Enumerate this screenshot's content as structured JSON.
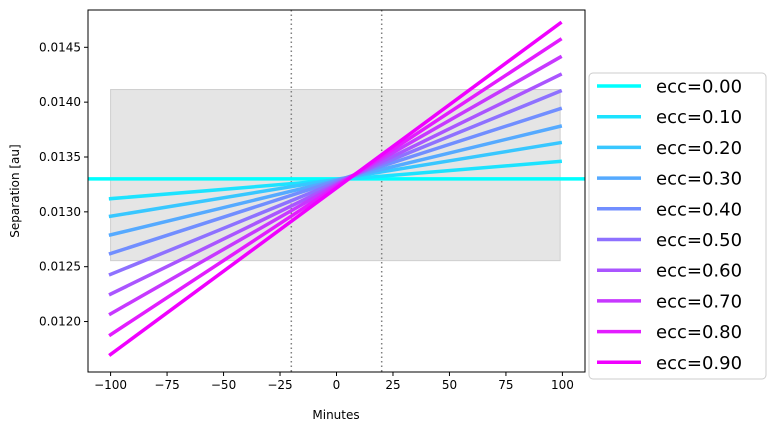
{
  "chart_data": {
    "type": "line",
    "title": "",
    "xlabel": "Minutes",
    "ylabel": "Separation [au]",
    "xlim": [
      -110,
      110
    ],
    "ylim": [
      0.01154,
      0.01484
    ],
    "xticks": [
      -100,
      -75,
      -50,
      -25,
      0,
      25,
      50,
      75,
      100
    ],
    "xtick_labels": [
      "−100",
      "−75",
      "−50",
      "−25",
      "0",
      "25",
      "50",
      "75",
      "100"
    ],
    "yticks": [
      0.012,
      0.0125,
      0.013,
      0.0135,
      0.014,
      0.0145
    ],
    "ytick_labels": [
      "0.0120",
      "0.0125",
      "0.0130",
      "0.0135",
      "0.0140",
      "0.0145"
    ],
    "grid": false,
    "legend_position": "outside-right",
    "shaded_region": {
      "x": [
        -100,
        99
      ],
      "y": [
        0.012555,
        0.014115
      ],
      "color": "#e5e5e5"
    },
    "vlines": {
      "x": [
        -20,
        20
      ],
      "color": "#7f7f7f",
      "style": "dotted"
    },
    "series": [
      {
        "name": "ecc=0.00",
        "color": "#00ffff",
        "x": [
          -110,
          110
        ],
        "y": [
          0.0133,
          0.0133
        ]
      },
      {
        "name": "ecc=0.10",
        "color": "#1ce3ff",
        "x": [
          -100,
          99
        ],
        "y": [
          0.01312,
          0.01346
        ]
      },
      {
        "name": "ecc=0.20",
        "color": "#38c7ff",
        "x": [
          -100,
          99
        ],
        "y": [
          0.01296,
          0.01363
        ]
      },
      {
        "name": "ecc=0.30",
        "color": "#55aaff",
        "x": [
          -100,
          99
        ],
        "y": [
          0.01279,
          0.01378
        ]
      },
      {
        "name": "ecc=0.40",
        "color": "#718eff",
        "x": [
          -100,
          99
        ],
        "y": [
          0.01262,
          0.01394
        ]
      },
      {
        "name": "ecc=0.50",
        "color": "#8e71ff",
        "x": [
          -100,
          99
        ],
        "y": [
          0.01243,
          0.0141
        ]
      },
      {
        "name": "ecc=0.60",
        "color": "#aa55ff",
        "x": [
          -100,
          99
        ],
        "y": [
          0.01225,
          0.01425
        ]
      },
      {
        "name": "ecc=0.70",
        "color": "#c738ff",
        "x": [
          -100,
          99
        ],
        "y": [
          0.01207,
          0.01441
        ]
      },
      {
        "name": "ecc=0.80",
        "color": "#e31cff",
        "x": [
          -100,
          99
        ],
        "y": [
          0.01188,
          0.01457
        ]
      },
      {
        "name": "ecc=0.90",
        "color": "#f000ff",
        "x": [
          -100,
          99
        ],
        "y": [
          0.0117,
          0.01472
        ]
      }
    ]
  }
}
